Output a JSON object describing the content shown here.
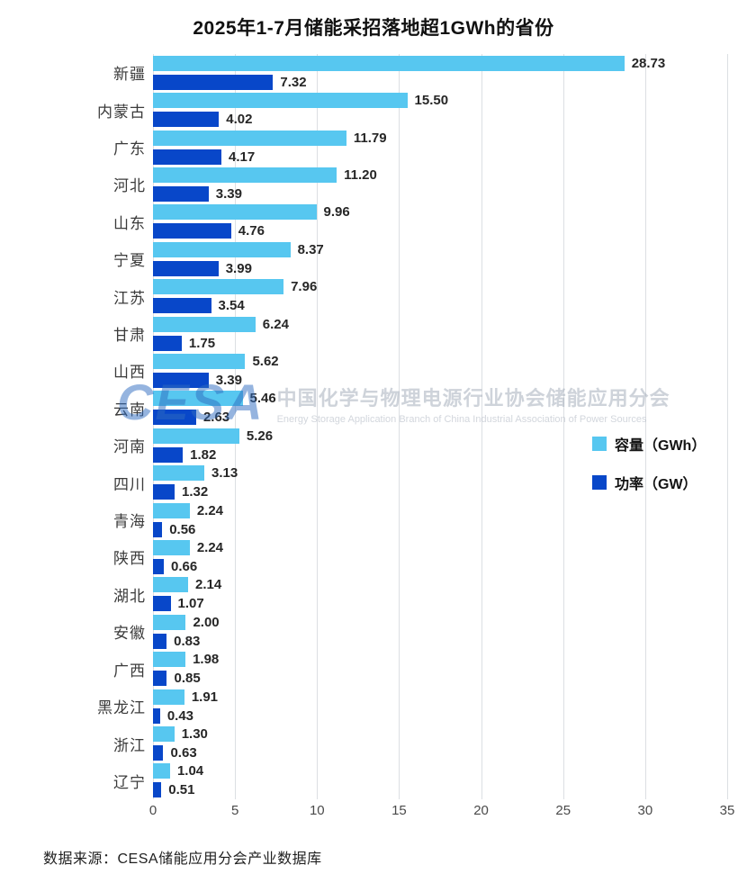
{
  "title": "2025年1-7月储能采招落地超1GWh的省份",
  "footer": {
    "source": "数据来源：CESA储能应用分会产业数据库"
  },
  "watermark": {
    "logo": "CESA",
    "cn": "中国化学与物理电源行业协会储能应用分会",
    "en": "Energy Storage Application Branch of China Industrial Association of Power Sources"
  },
  "chart_data": {
    "type": "bar",
    "orientation": "horizontal",
    "title": "2025年1-7月储能采招落地超1GWh的省份",
    "categories": [
      "新疆",
      "内蒙古",
      "广东",
      "河北",
      "山东",
      "宁夏",
      "江苏",
      "甘肃",
      "山西",
      "云南",
      "河南",
      "四川",
      "青海",
      "陕西",
      "湖北",
      "安徽",
      "广西",
      "黑龙江",
      "浙江",
      "辽宁"
    ],
    "series": [
      {
        "key": "capacity",
        "name": "容量（GWh）",
        "color": "#57C7F0",
        "values": [
          28.73,
          15.5,
          11.79,
          11.2,
          9.96,
          8.37,
          7.96,
          6.24,
          5.62,
          5.46,
          5.26,
          3.13,
          2.24,
          2.24,
          2.14,
          2.0,
          1.98,
          1.91,
          1.3,
          1.04
        ]
      },
      {
        "key": "power",
        "name": "功率（GW）",
        "color": "#0847C9",
        "values": [
          7.32,
          4.02,
          4.17,
          3.39,
          4.76,
          3.99,
          3.54,
          1.75,
          3.39,
          2.63,
          1.82,
          1.32,
          0.56,
          0.66,
          1.07,
          0.83,
          0.85,
          0.43,
          0.63,
          0.51
        ]
      }
    ],
    "xlim": [
      0,
      35
    ],
    "xticks": [
      0,
      5,
      10,
      15,
      20,
      25,
      30,
      35
    ],
    "grid": true,
    "legend_position": "right-middle",
    "value_labels": "on",
    "value_label_format": "0.00"
  }
}
